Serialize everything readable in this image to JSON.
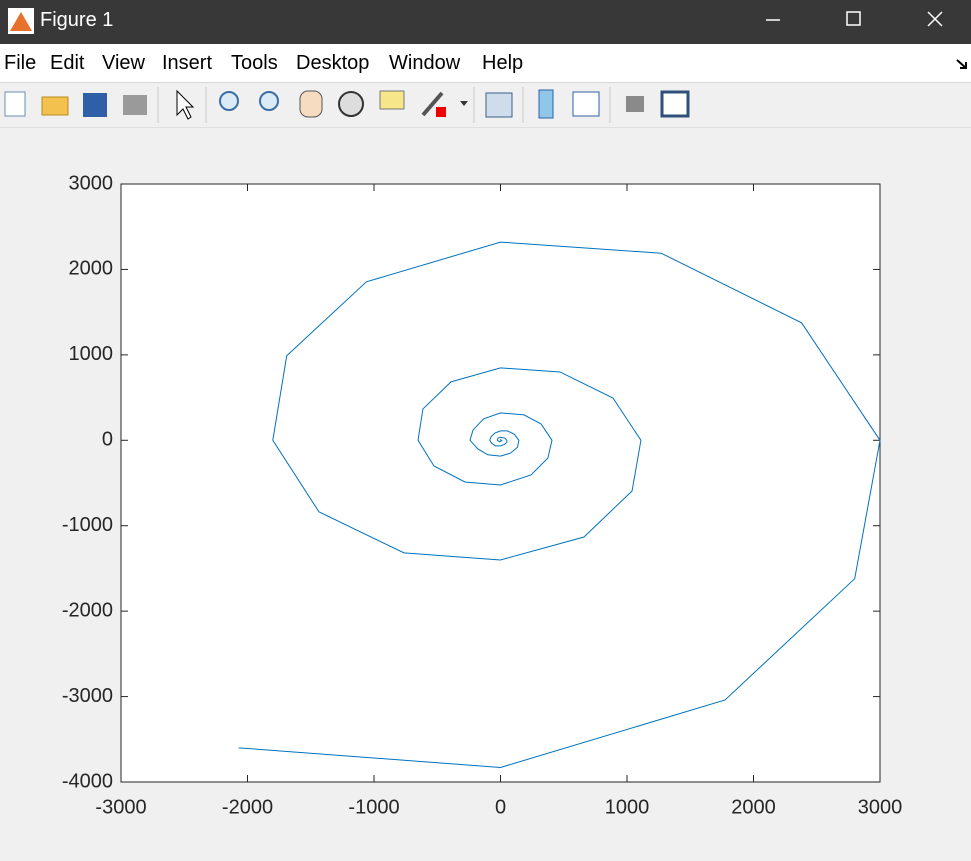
{
  "window": {
    "title": "Figure 1"
  },
  "menu": [
    "File",
    "Edit",
    "View",
    "Insert",
    "Tools",
    "Desktop",
    "Window",
    "Help"
  ],
  "chart_data": {
    "type": "line",
    "color": "#0072bd",
    "x": [
      -2070,
      0,
      1775,
      2800,
      3000,
      2380,
      1270,
      0,
      -1060,
      -1690,
      -1800,
      -1435,
      -763,
      0,
      660,
      1040,
      1110,
      889,
      470,
      0,
      -391,
      -613,
      -652,
      -526,
      -281,
      0,
      241,
      375,
      407,
      320,
      186,
      0,
      -134,
      -217,
      -241,
      -180,
      -100,
      0,
      80,
      135,
      145,
      110,
      55,
      0,
      -45,
      -75,
      -85,
      -70,
      -40,
      0,
      30,
      50,
      50,
      35,
      0,
      -20,
      -25,
      -10,
      0,
      10,
      0,
      0
    ],
    "values": [
      -3600,
      -3830,
      -3040,
      -1620,
      0,
      1375,
      2190,
      2320,
      1855,
      989,
      0,
      -838,
      -1318,
      -1401,
      -1132,
      -593,
      0,
      495,
      800,
      847,
      684,
      367,
      0,
      -301,
      -488,
      -523,
      -406,
      -207,
      0,
      192,
      297,
      321,
      250,
      121,
      0,
      -100,
      -170,
      -185,
      -150,
      -80,
      0,
      70,
      110,
      110,
      85,
      40,
      0,
      -35,
      -65,
      -65,
      -50,
      -25,
      0,
      25,
      35,
      25,
      0,
      -15,
      -15,
      0,
      5,
      0
    ],
    "xlim": [
      -3000,
      3000
    ],
    "xticks": [
      -3000,
      -2000,
      -1000,
      0,
      1000,
      2000,
      3000
    ],
    "ylim": [
      -4000,
      3000
    ],
    "yticks": [
      -4000,
      -3000,
      -2000,
      -1000,
      0,
      1000,
      2000,
      3000
    ],
    "grid": false
  }
}
